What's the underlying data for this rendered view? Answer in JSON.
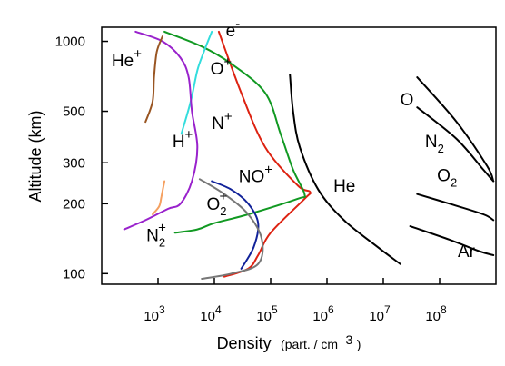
{
  "chart_data": {
    "type": "line",
    "xlabel_main": "Density",
    "xlabel_units": "(part. / cm",
    "xlabel_units_exp": "3",
    "xlabel_units_close": ")",
    "ylabel": "Altitude (km)",
    "x_scale": "log",
    "y_scale": "log",
    "xlim": [
      100,
      1000000000
    ],
    "ylim": [
      90,
      1150
    ],
    "grid": false,
    "x_ticks": [
      {
        "value": 1000,
        "base": "10",
        "exp": "3"
      },
      {
        "value": 10000,
        "base": "10",
        "exp": "4"
      },
      {
        "value": 100000,
        "base": "10",
        "exp": "5"
      },
      {
        "value": 1000000,
        "base": "10",
        "exp": "6"
      },
      {
        "value": 10000000,
        "base": "10",
        "exp": "7"
      },
      {
        "value": 100000000,
        "base": "10",
        "exp": "8"
      }
    ],
    "y_ticks": [
      {
        "value": 100,
        "label": "100"
      },
      {
        "value": 200,
        "label": "200"
      },
      {
        "value": 300,
        "label": "300"
      },
      {
        "value": 500,
        "label": "500"
      },
      {
        "value": 1000,
        "label": "1000"
      }
    ],
    "series": [
      {
        "name": "e",
        "sup": "-",
        "color": "#dd2211",
        "points": [
          [
            12000,
            1100
          ],
          [
            30000,
            600
          ],
          [
            80000,
            350
          ],
          [
            300000,
            240
          ],
          [
            500000,
            225
          ],
          [
            400000,
            210
          ],
          [
            100000,
            150
          ],
          [
            60000,
            120
          ],
          [
            40000,
            105
          ],
          [
            15000,
            97
          ]
        ],
        "label_at": [
          16000,
          1050
        ]
      },
      {
        "name": "O",
        "sup": "+",
        "color": "#119922",
        "points": [
          [
            1300,
            1100
          ],
          [
            6000,
            950
          ],
          [
            20000,
            800
          ],
          [
            80000,
            600
          ],
          [
            150000,
            400
          ],
          [
            250000,
            280
          ],
          [
            400000,
            220
          ],
          [
            300000,
            210
          ],
          [
            40000,
            180
          ],
          [
            10000,
            165
          ],
          [
            5000,
            155
          ],
          [
            2000,
            150
          ]
        ],
        "label_at": [
          8500,
          720
        ]
      },
      {
        "name": "H",
        "sup": "+",
        "color": "#33dddd",
        "points": [
          [
            9000,
            1100
          ],
          [
            6500,
            900
          ],
          [
            5000,
            750
          ],
          [
            3800,
            550
          ],
          [
            2600,
            400
          ]
        ],
        "label_at": [
          1800,
          350
        ]
      },
      {
        "name": "N",
        "sup": "+",
        "color": "#9922cc",
        "points": [
          [
            400,
            1100
          ],
          [
            1200,
            1000
          ],
          [
            2500,
            850
          ],
          [
            3500,
            700
          ],
          [
            4000,
            500
          ],
          [
            5000,
            350
          ],
          [
            4000,
            250
          ],
          [
            2500,
            200
          ],
          [
            1500,
            190
          ],
          [
            600,
            170
          ],
          [
            250,
            155
          ]
        ],
        "label_at": [
          9000,
          420
        ]
      },
      {
        "name": "He",
        "sup": "+",
        "color": "#995522",
        "points": [
          [
            1200,
            1050
          ],
          [
            950,
            900
          ],
          [
            850,
            700
          ],
          [
            800,
            550
          ],
          [
            600,
            450
          ]
        ],
        "label_at": [
          150,
          780
        ]
      },
      {
        "name": "NO",
        "sup": "+",
        "color": "#112299",
        "points": [
          [
            9000,
            250
          ],
          [
            20000,
            230
          ],
          [
            40000,
            200
          ],
          [
            60000,
            165
          ],
          [
            50000,
            130
          ],
          [
            30000,
            105
          ]
        ],
        "label_at": [
          27000,
          248
        ]
      },
      {
        "name": "O",
        "sup": "+",
        "sub": "2",
        "color": "#777777",
        "points": [
          [
            5500,
            255
          ],
          [
            15000,
            220
          ],
          [
            40000,
            180
          ],
          [
            70000,
            140
          ],
          [
            60000,
            110
          ],
          [
            20000,
            100
          ],
          [
            6000,
            95
          ]
        ],
        "label_at": [
          7300,
          188
        ]
      },
      {
        "name": "N",
        "sup": "+",
        "sub": "2",
        "color": "#f5a060",
        "points": [
          [
            1300,
            250
          ],
          [
            1150,
            215
          ],
          [
            1050,
            195
          ],
          [
            800,
            180
          ]
        ],
        "label_at": [
          620,
          138
        ]
      },
      {
        "name": "O",
        "color": "#000000",
        "points": [
          [
            40000000,
            700
          ],
          [
            200000000,
            450
          ],
          [
            700000000,
            290
          ],
          [
            900000000,
            250
          ]
        ],
        "label_at": [
          20000000,
          530
        ]
      },
      {
        "name": "N",
        "sub": "2",
        "color": "#000000",
        "points": [
          [
            40000000,
            520
          ],
          [
            200000000,
            380
          ],
          [
            600000000,
            280
          ],
          [
            900000000,
            250
          ]
        ],
        "label_at": [
          55000000,
          350
        ]
      },
      {
        "name": "He",
        "color": "#000000",
        "points": [
          [
            220000,
            720
          ],
          [
            250000,
            500
          ],
          [
            330000,
            350
          ],
          [
            700000,
            230
          ],
          [
            2000000,
            170
          ],
          [
            8000000,
            130
          ],
          [
            20000000,
            110
          ]
        ],
        "label_at": [
          1300000,
          225
        ]
      },
      {
        "name": "O",
        "sub": "2",
        "color": "#000000",
        "points": [
          [
            40000000,
            220
          ],
          [
            150000000,
            200
          ],
          [
            600000000,
            180
          ],
          [
            900000000,
            170
          ]
        ],
        "label_at": [
          90000000,
          250
        ]
      },
      {
        "name": "Ar",
        "color": "#000000",
        "points": [
          [
            30000000,
            160
          ],
          [
            150000000,
            140
          ],
          [
            500000000,
            125
          ],
          [
            900000000,
            120
          ]
        ],
        "label_at": [
          210000000,
          118
        ]
      }
    ]
  }
}
